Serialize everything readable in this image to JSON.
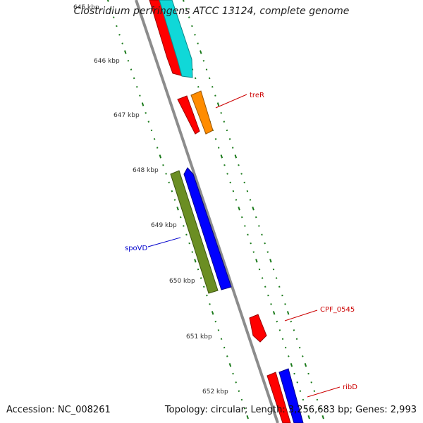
{
  "title": "Clostridium perfringens ATCC 13124, complete genome",
  "footer": {
    "accession": "Accession: NC_008261",
    "summary": "Topology: circular; Length: 3,256,683 bp; Genes: 2,993"
  },
  "colors": {
    "backbone": "#8c8c8c",
    "tick": "#1a7a1a",
    "red": "#ff0000",
    "cyan": "#10d8d8",
    "orange": "#ff8c00",
    "olive": "#6b8e23",
    "blue": "#0000ff",
    "forward_label": "#cc0000",
    "reverse_label": "#0000cc"
  },
  "ticks": [
    "645 kbp",
    "646 kbp",
    "647 kbp",
    "648 kbp",
    "649 kbp",
    "650 kbp",
    "651 kbp",
    "652 kbp"
  ],
  "gene_labels": [
    {
      "name": "treR",
      "color": "#cc0000"
    },
    {
      "name": "spoVD",
      "color": "#0000cc"
    },
    {
      "name": "CPF_0545",
      "color": "#cc0000"
    },
    {
      "name": "ribD",
      "color": "#cc0000"
    }
  ]
}
